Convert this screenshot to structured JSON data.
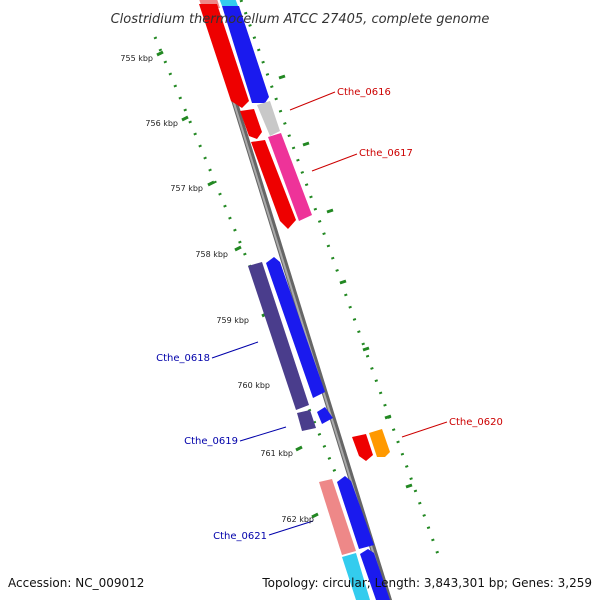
{
  "title": "Clostridium thermocellum ATCC 27405, complete genome",
  "footer": {
    "accession": "Accession: NC_009012",
    "summary": "Topology: circular; Length: 3,843,301 bp; Genes: 3,259"
  },
  "ruler": {
    "unit": "kbp",
    "labels": [
      "755 kbp",
      "756 kbp",
      "757 kbp",
      "758 kbp",
      "759 kbp",
      "760 kbp",
      "761 kbp",
      "762 kbp"
    ]
  },
  "gene_labels": [
    {
      "name": "Cthe_0616",
      "color": "#cc0000"
    },
    {
      "name": "Cthe_0617",
      "color": "#cc0000"
    },
    {
      "name": "Cthe_0618",
      "color": "#0000aa"
    },
    {
      "name": "Cthe_0619",
      "color": "#0000aa"
    },
    {
      "name": "Cthe_0620",
      "color": "#cc0000"
    },
    {
      "name": "Cthe_0621",
      "color": "#0000aa"
    }
  ],
  "colors": {
    "backbone": "#888888",
    "ruler": "#228822",
    "red": "#ee0000",
    "blue": "#1a1aee",
    "pink": "#ee3399",
    "purple": "#4a3d8c",
    "salmon": "#ee8888",
    "cyan": "#33ccee",
    "grey": "#c8c8c8",
    "orange": "#ff9900"
  }
}
